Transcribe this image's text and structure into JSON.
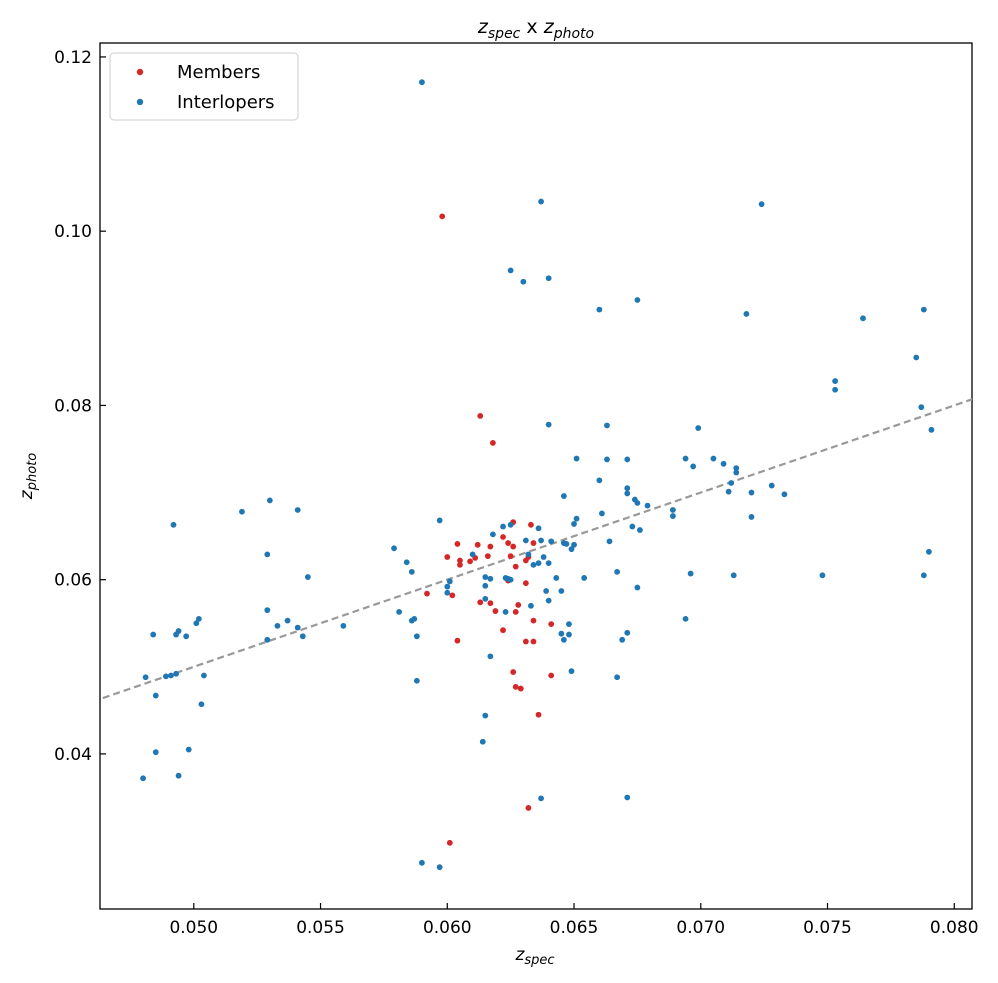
{
  "chart_data": {
    "type": "scatter",
    "title": {
      "base1": "z",
      "sub1": "spec",
      "mid": " x ",
      "base2": "z",
      "sub2": "photo"
    },
    "xlabel": {
      "base": "z",
      "sub": "spec"
    },
    "ylabel": {
      "base": "z",
      "sub": "photo"
    },
    "xlim": [
      0.0463,
      0.0807
    ],
    "ylim": [
      0.0222,
      0.1216
    ],
    "xticks": [
      "0.050",
      "0.055",
      "0.060",
      "0.065",
      "0.070",
      "0.075",
      "0.080"
    ],
    "yticks": [
      "0.04",
      "0.06",
      "0.08",
      "0.10",
      "0.12"
    ],
    "legend_position": "upper-left",
    "reference_line": {
      "style": "dashed",
      "color": "#999999",
      "relation": "y = x"
    },
    "series": [
      {
        "name": "Members",
        "color": "#d62728",
        "points": [
          [
            0.0598,
            0.1017
          ],
          [
            0.0613,
            0.0788
          ],
          [
            0.0618,
            0.0757
          ],
          [
            0.0626,
            0.0666
          ],
          [
            0.0633,
            0.0663
          ],
          [
            0.0622,
            0.0649
          ],
          [
            0.0624,
            0.0642
          ],
          [
            0.0634,
            0.0642
          ],
          [
            0.0604,
            0.0641
          ],
          [
            0.0612,
            0.064
          ],
          [
            0.0617,
            0.0638
          ],
          [
            0.0626,
            0.0638
          ],
          [
            0.06,
            0.0626
          ],
          [
            0.0616,
            0.0627
          ],
          [
            0.0625,
            0.0627
          ],
          [
            0.0632,
            0.0626
          ],
          [
            0.0605,
            0.0622
          ],
          [
            0.0609,
            0.0621
          ],
          [
            0.0611,
            0.0625
          ],
          [
            0.0631,
            0.0622
          ],
          [
            0.0605,
            0.0617
          ],
          [
            0.0627,
            0.0615
          ],
          [
            0.0624,
            0.0599
          ],
          [
            0.0631,
            0.0596
          ],
          [
            0.0592,
            0.0584
          ],
          [
            0.0602,
            0.0582
          ],
          [
            0.0613,
            0.0574
          ],
          [
            0.0617,
            0.0573
          ],
          [
            0.0628,
            0.0571
          ],
          [
            0.0619,
            0.0564
          ],
          [
            0.0627,
            0.0563
          ],
          [
            0.0634,
            0.0553
          ],
          [
            0.0641,
            0.0549
          ],
          [
            0.0622,
            0.0542
          ],
          [
            0.0604,
            0.053
          ],
          [
            0.0631,
            0.0529
          ],
          [
            0.0634,
            0.0529
          ],
          [
            0.0626,
            0.0494
          ],
          [
            0.0641,
            0.049
          ],
          [
            0.0627,
            0.0477
          ],
          [
            0.0629,
            0.0475
          ],
          [
            0.0636,
            0.0445
          ],
          [
            0.0632,
            0.0338
          ],
          [
            0.0601,
            0.0298
          ]
        ]
      },
      {
        "name": "Interlopers",
        "color": "#1f77b4",
        "points": [
          [
            0.059,
            0.1171
          ],
          [
            0.0637,
            0.1034
          ],
          [
            0.0724,
            0.1031
          ],
          [
            0.0625,
            0.0955
          ],
          [
            0.064,
            0.0946
          ],
          [
            0.063,
            0.0942
          ],
          [
            0.0675,
            0.0921
          ],
          [
            0.066,
            0.091
          ],
          [
            0.0788,
            0.091
          ],
          [
            0.0718,
            0.0905
          ],
          [
            0.0764,
            0.09
          ],
          [
            0.0785,
            0.0855
          ],
          [
            0.0753,
            0.0828
          ],
          [
            0.0753,
            0.0818
          ],
          [
            0.0787,
            0.0798
          ],
          [
            0.064,
            0.0778
          ],
          [
            0.0663,
            0.0777
          ],
          [
            0.0699,
            0.0774
          ],
          [
            0.0791,
            0.0772
          ],
          [
            0.0651,
            0.0739
          ],
          [
            0.0671,
            0.0738
          ],
          [
            0.0663,
            0.0738
          ],
          [
            0.0694,
            0.0739
          ],
          [
            0.0705,
            0.0739
          ],
          [
            0.0709,
            0.0733
          ],
          [
            0.0697,
            0.073
          ],
          [
            0.0714,
            0.0728
          ],
          [
            0.0714,
            0.0723
          ],
          [
            0.066,
            0.0714
          ],
          [
            0.0712,
            0.0711
          ],
          [
            0.0728,
            0.0708
          ],
          [
            0.0671,
            0.0705
          ],
          [
            0.0711,
            0.0701
          ],
          [
            0.0671,
            0.0699
          ],
          [
            0.072,
            0.07
          ],
          [
            0.0733,
            0.0698
          ],
          [
            0.0646,
            0.0696
          ],
          [
            0.0674,
            0.0692
          ],
          [
            0.0675,
            0.0688
          ],
          [
            0.0679,
            0.0685
          ],
          [
            0.0689,
            0.068
          ],
          [
            0.0689,
            0.0673
          ],
          [
            0.0661,
            0.0676
          ],
          [
            0.072,
            0.0672
          ],
          [
            0.0651,
            0.067
          ],
          [
            0.065,
            0.0664
          ],
          [
            0.0673,
            0.0661
          ],
          [
            0.0676,
            0.0657
          ],
          [
            0.0597,
            0.0668
          ],
          [
            0.0625,
            0.0663
          ],
          [
            0.0622,
            0.0661
          ],
          [
            0.0636,
            0.0659
          ],
          [
            0.0618,
            0.0652
          ],
          [
            0.0637,
            0.0645
          ],
          [
            0.0631,
            0.0645
          ],
          [
            0.0641,
            0.0644
          ],
          [
            0.0646,
            0.0642
          ],
          [
            0.0647,
            0.0641
          ],
          [
            0.065,
            0.064
          ],
          [
            0.0664,
            0.0644
          ],
          [
            0.0649,
            0.0635
          ],
          [
            0.0632,
            0.0629
          ],
          [
            0.0638,
            0.0626
          ],
          [
            0.0636,
            0.0619
          ],
          [
            0.064,
            0.0619
          ],
          [
            0.0584,
            0.062
          ],
          [
            0.0634,
            0.0617
          ],
          [
            0.0579,
            0.0636
          ],
          [
            0.061,
            0.0629
          ],
          [
            0.0615,
            0.0603
          ],
          [
            0.0617,
            0.0601
          ],
          [
            0.06,
            0.0592
          ],
          [
            0.0601,
            0.0598
          ],
          [
            0.0623,
            0.0602
          ],
          [
            0.0624,
            0.0601
          ],
          [
            0.0625,
            0.06
          ],
          [
            0.0643,
            0.0602
          ],
          [
            0.0654,
            0.0602
          ],
          [
            0.0667,
            0.0609
          ],
          [
            0.0675,
            0.0591
          ],
          [
            0.0696,
            0.0607
          ],
          [
            0.0713,
            0.0605
          ],
          [
            0.0748,
            0.0605
          ],
          [
            0.0788,
            0.0605
          ],
          [
            0.079,
            0.0632
          ],
          [
            0.0586,
            0.0609
          ],
          [
            0.06,
            0.0585
          ],
          [
            0.0639,
            0.0587
          ],
          [
            0.0645,
            0.0587
          ],
          [
            0.0615,
            0.0593
          ],
          [
            0.0615,
            0.0578
          ],
          [
            0.0581,
            0.0563
          ],
          [
            0.0586,
            0.0553
          ],
          [
            0.0587,
            0.0555
          ],
          [
            0.0623,
            0.0563
          ],
          [
            0.064,
            0.0576
          ],
          [
            0.0633,
            0.057
          ],
          [
            0.0648,
            0.0549
          ],
          [
            0.0645,
            0.0538
          ],
          [
            0.0648,
            0.0537
          ],
          [
            0.0646,
            0.0531
          ],
          [
            0.0588,
            0.0535
          ],
          [
            0.0669,
            0.0531
          ],
          [
            0.0671,
            0.0539
          ],
          [
            0.0694,
            0.0555
          ],
          [
            0.0617,
            0.0512
          ],
          [
            0.0649,
            0.0495
          ],
          [
            0.0667,
            0.0488
          ],
          [
            0.0588,
            0.0484
          ],
          [
            0.0615,
            0.0444
          ],
          [
            0.0614,
            0.0414
          ],
          [
            0.0637,
            0.0349
          ],
          [
            0.0671,
            0.035
          ],
          [
            0.059,
            0.0275
          ],
          [
            0.0597,
            0.027
          ],
          [
            0.0519,
            0.0678
          ],
          [
            0.053,
            0.0691
          ],
          [
            0.0541,
            0.068
          ],
          [
            0.0545,
            0.0603
          ],
          [
            0.0529,
            0.0629
          ],
          [
            0.0492,
            0.0663
          ],
          [
            0.0529,
            0.0565
          ],
          [
            0.0533,
            0.0547
          ],
          [
            0.0537,
            0.0553
          ],
          [
            0.0541,
            0.0545
          ],
          [
            0.0543,
            0.0535
          ],
          [
            0.0529,
            0.0531
          ],
          [
            0.0559,
            0.0547
          ],
          [
            0.0484,
            0.0537
          ],
          [
            0.0494,
            0.0541
          ],
          [
            0.0493,
            0.0537
          ],
          [
            0.0497,
            0.0535
          ],
          [
            0.0501,
            0.055
          ],
          [
            0.0502,
            0.0555
          ],
          [
            0.0481,
            0.0488
          ],
          [
            0.0489,
            0.0489
          ],
          [
            0.0491,
            0.049
          ],
          [
            0.0493,
            0.0492
          ],
          [
            0.0504,
            0.049
          ],
          [
            0.0485,
            0.0467
          ],
          [
            0.0503,
            0.0457
          ],
          [
            0.0485,
            0.0402
          ],
          [
            0.0498,
            0.0405
          ],
          [
            0.0494,
            0.0375
          ],
          [
            0.048,
            0.0372
          ]
        ]
      }
    ]
  }
}
